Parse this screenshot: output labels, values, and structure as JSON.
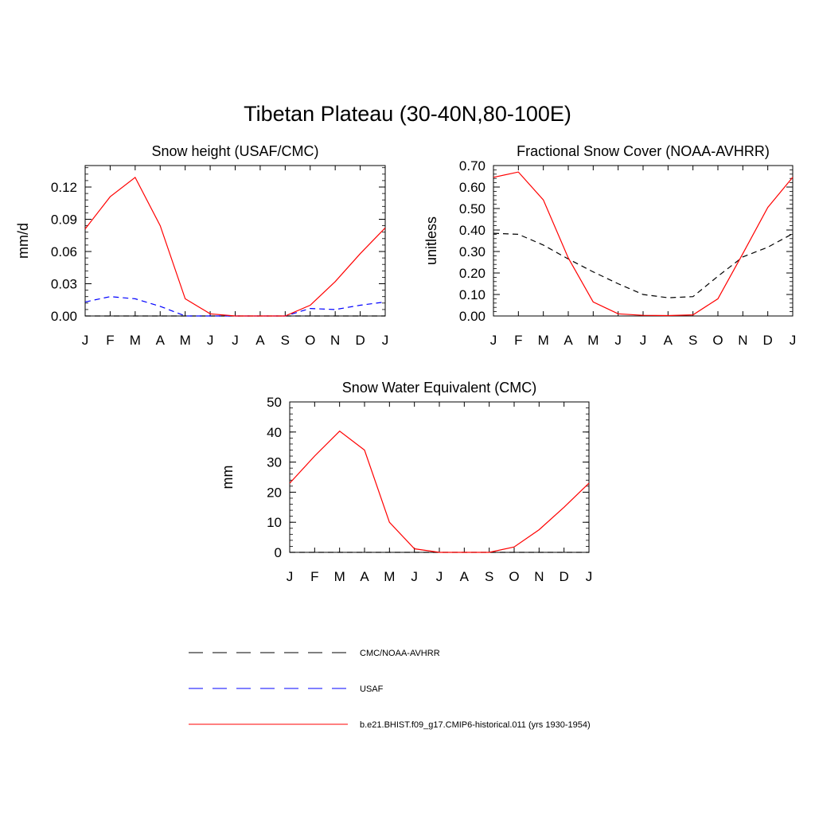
{
  "title": "Tibetan Plateau (30-40N,80-100E)",
  "chart_data": [
    {
      "type": "line",
      "title": "Snow height (USAF/CMC)",
      "xlabel": "",
      "ylabel": "mm/d",
      "categories": [
        "J",
        "F",
        "M",
        "A",
        "M",
        "J",
        "J",
        "A",
        "S",
        "O",
        "N",
        "D",
        "J"
      ],
      "ylim": [
        0,
        0.14
      ],
      "yticks": [
        "0.00",
        "0.03",
        "0.06",
        "0.09",
        "0.12"
      ],
      "series": [
        {
          "name": "CMC/NOAA-AVHRR",
          "color": "#000000",
          "dash": "dashed",
          "values": [
            0,
            0,
            0,
            0,
            0,
            0,
            0,
            0,
            0,
            0,
            0,
            0,
            0
          ]
        },
        {
          "name": "USAF",
          "color": "#0000ff",
          "dash": "dashed",
          "values": [
            0.013,
            0.018,
            0.016,
            0.009,
            0.0,
            0.0,
            0.0,
            0.0,
            0.0,
            0.007,
            0.006,
            0.01,
            0.013
          ]
        },
        {
          "name": "b.e21.BHIST.f09_g17.CMIP6-historical.011 (yrs 1930-1954)",
          "color": "#ff0000",
          "dash": "solid",
          "values": [
            0.081,
            0.111,
            0.129,
            0.084,
            0.016,
            0.002,
            0.0,
            0.0,
            0.0,
            0.01,
            0.032,
            0.058,
            0.082
          ]
        }
      ]
    },
    {
      "type": "line",
      "title": "Fractional Snow Cover (NOAA-AVHRR)",
      "xlabel": "",
      "ylabel": "unitless",
      "categories": [
        "J",
        "F",
        "M",
        "A",
        "M",
        "J",
        "J",
        "A",
        "S",
        "O",
        "N",
        "D",
        "J"
      ],
      "ylim": [
        0,
        0.7
      ],
      "yticks": [
        "0.00",
        "0.10",
        "0.20",
        "0.30",
        "0.40",
        "0.50",
        "0.60",
        "0.70"
      ],
      "series": [
        {
          "name": "CMC/NOAA-AVHRR",
          "color": "#000000",
          "dash": "dashed",
          "values": [
            0.385,
            0.38,
            0.33,
            0.265,
            0.205,
            0.15,
            0.1,
            0.085,
            0.09,
            0.185,
            0.275,
            0.32,
            0.383
          ]
        },
        {
          "name": "b.e21.BHIST.f09_g17.CMIP6-historical.011 (yrs 1930-1954)",
          "color": "#ff0000",
          "dash": "solid",
          "values": [
            0.645,
            0.67,
            0.54,
            0.27,
            0.065,
            0.01,
            0.003,
            0.002,
            0.005,
            0.08,
            0.29,
            0.505,
            0.645
          ]
        }
      ]
    },
    {
      "type": "line",
      "title": "Snow Water Equivalent (CMC)",
      "xlabel": "",
      "ylabel": "mm",
      "categories": [
        "J",
        "F",
        "M",
        "A",
        "M",
        "J",
        "J",
        "A",
        "S",
        "O",
        "N",
        "D",
        "J"
      ],
      "ylim": [
        0,
        50
      ],
      "yticks": [
        "0",
        "10",
        "20",
        "30",
        "40",
        "50"
      ],
      "series": [
        {
          "name": "CMC/NOAA-AVHRR",
          "color": "#000000",
          "dash": "dashed",
          "values": [
            0,
            0,
            0,
            0,
            0,
            0,
            0,
            0,
            0,
            0,
            0,
            0,
            0
          ]
        },
        {
          "name": "b.e21.BHIST.f09_g17.CMIP6-historical.011 (yrs 1930-1954)",
          "color": "#ff0000",
          "dash": "solid",
          "values": [
            23.0,
            32.0,
            40.3,
            34.0,
            10.0,
            1.2,
            0.0,
            0.0,
            0.0,
            1.8,
            7.5,
            15.0,
            23.0
          ]
        }
      ]
    }
  ],
  "legend": [
    {
      "label": "CMC/NOAA-AVHRR",
      "color": "#000000",
      "dash": "dashed"
    },
    {
      "label": "USAF",
      "color": "#0000ff",
      "dash": "dashed"
    },
    {
      "label": "b.e21.BHIST.f09_g17.CMIP6-historical.011 (yrs 1930-1954)",
      "color": "#ff0000",
      "dash": "solid"
    }
  ]
}
